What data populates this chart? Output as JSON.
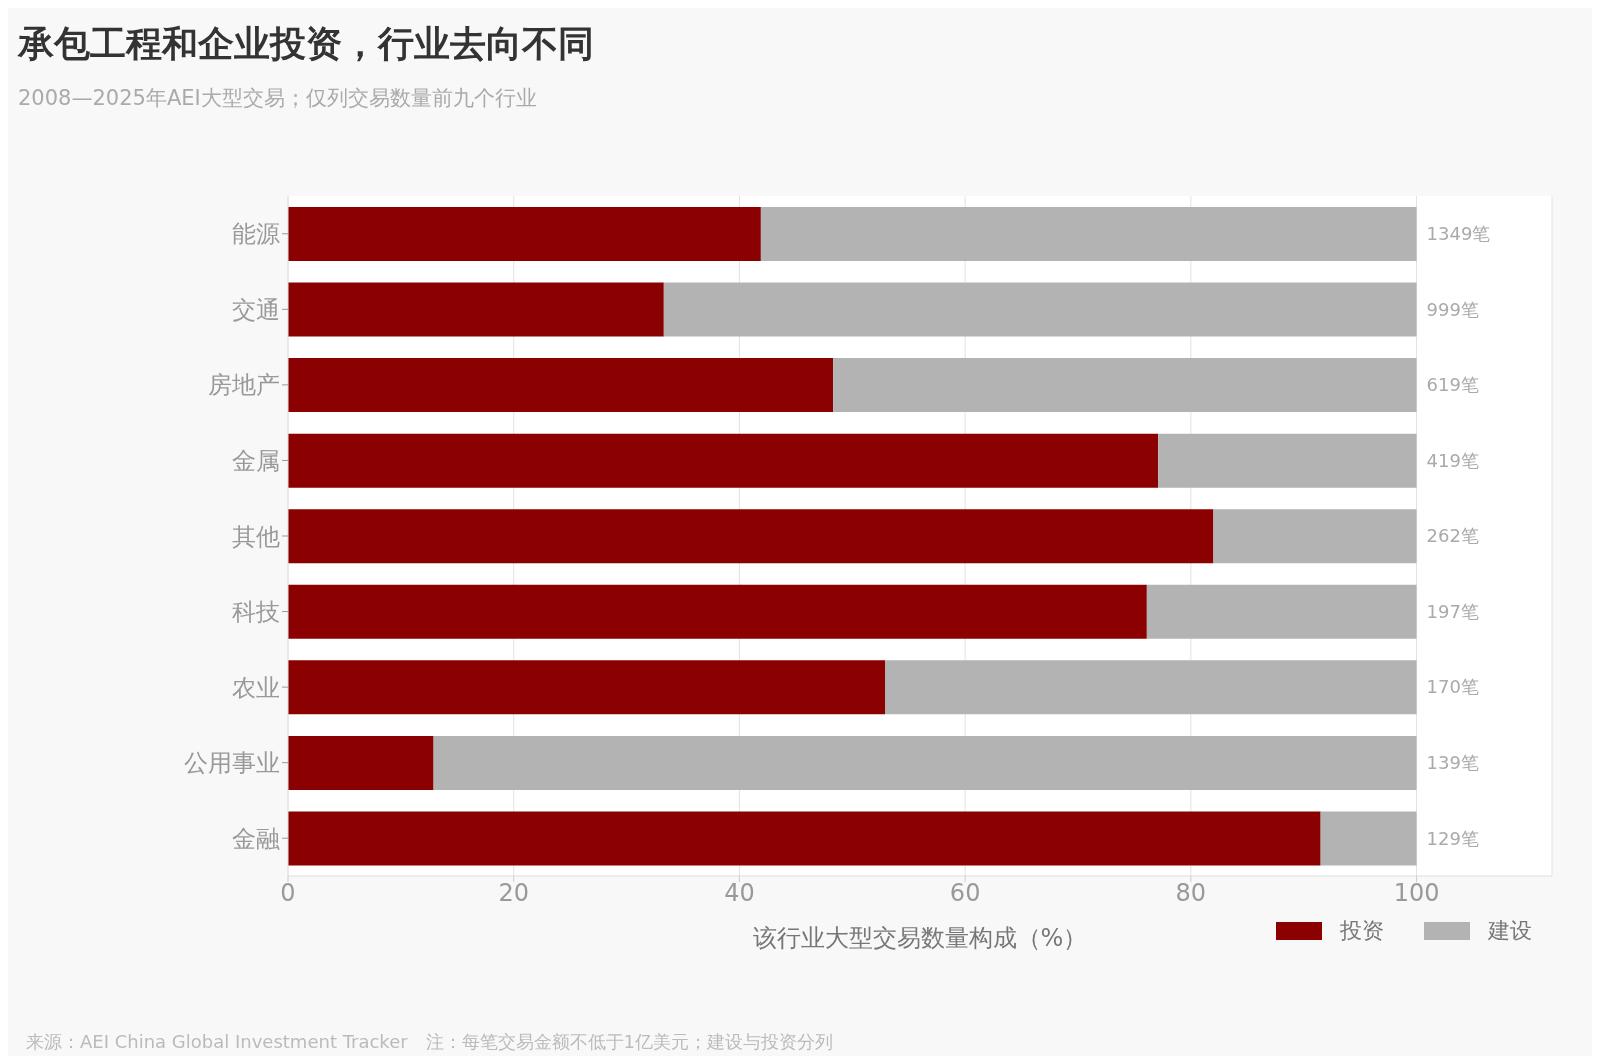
{
  "chart_data": {
    "type": "bar",
    "orientation": "horizontal",
    "stacked": true,
    "title": "承包工程和企业投资，行业去向不同",
    "subtitle": "2008—2025年AEI大型交易；仅列交易数量前九个行业",
    "xlabel": "该行业大型交易数量构成（%）",
    "categories": [
      "能源",
      "交通",
      "房地产",
      "金属",
      "其他",
      "科技",
      "农业",
      "公用事业",
      "金融"
    ],
    "series": [
      {
        "name": "投资",
        "color": "#8b0000",
        "values": [
          41.9,
          33.3,
          48.3,
          77.1,
          82.0,
          76.1,
          52.9,
          12.9,
          91.5
        ]
      },
      {
        "name": "建设",
        "color": "#b3b3b3",
        "values": [
          58.1,
          66.7,
          51.7,
          22.9,
          18.0,
          23.9,
          47.1,
          87.1,
          8.5
        ]
      }
    ],
    "xlim": [
      0,
      112
    ],
    "xticks": [
      0,
      20,
      40,
      60,
      80,
      100
    ],
    "grid": "x",
    "legend": "bottom right",
    "annotations": [
      "1349笔",
      "999笔",
      "619笔",
      "419笔",
      "262笔",
      "197笔",
      "170笔",
      "139笔",
      "129笔",
      "来源：AEI China Global Investment Tracker　注：每笔交易金额不低于1亿美元；建设与投资分列"
    ]
  }
}
